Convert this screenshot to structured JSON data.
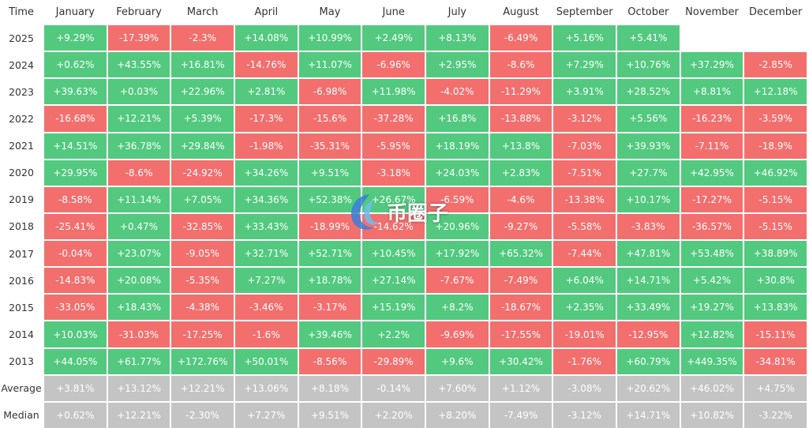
{
  "table": {
    "header": [
      "Time",
      "January",
      "February",
      "March",
      "April",
      "May",
      "June",
      "July",
      "August",
      "September",
      "October",
      "November",
      "December"
    ],
    "rows": [
      {
        "label": "2025",
        "cells": [
          "+9.29%",
          "-17.39%",
          "-2.3%",
          "+14.08%",
          "+10.99%",
          "+2.49%",
          "+8.13%",
          "-6.49%",
          "+5.16%",
          "+5.41%",
          null,
          null
        ]
      },
      {
        "label": "2024",
        "cells": [
          "+0.62%",
          "+43.55%",
          "+16.81%",
          "-14.76%",
          "+11.07%",
          "-6.96%",
          "+2.95%",
          "-8.6%",
          "+7.29%",
          "+10.76%",
          "+37.29%",
          "-2.85%"
        ]
      },
      {
        "label": "2023",
        "cells": [
          "+39.63%",
          "+0.03%",
          "+22.96%",
          "+2.81%",
          "-6.98%",
          "+11.98%",
          "-4.02%",
          "-11.29%",
          "+3.91%",
          "+28.52%",
          "+8.81%",
          "+12.18%"
        ]
      },
      {
        "label": "2022",
        "cells": [
          "-16.68%",
          "+12.21%",
          "+5.39%",
          "-17.3%",
          "-15.6%",
          "-37.28%",
          "+16.8%",
          "-13.88%",
          "-3.12%",
          "+5.56%",
          "-16.23%",
          "-3.59%"
        ]
      },
      {
        "label": "2021",
        "cells": [
          "+14.51%",
          "+36.78%",
          "+29.84%",
          "-1.98%",
          "-35.31%",
          "-5.95%",
          "+18.19%",
          "+13.8%",
          "-7.03%",
          "+39.93%",
          "-7.11%",
          "-18.9%"
        ]
      },
      {
        "label": "2020",
        "cells": [
          "+29.95%",
          "-8.6%",
          "-24.92%",
          "+34.26%",
          "+9.51%",
          "-3.18%",
          "+24.03%",
          "+2.83%",
          "-7.51%",
          "+27.7%",
          "+42.95%",
          "+46.92%"
        ]
      },
      {
        "label": "2019",
        "cells": [
          "-8.58%",
          "+11.14%",
          "+7.05%",
          "+34.36%",
          "+52.38%",
          "+26.67%",
          "-6.59%",
          "-4.6%",
          "-13.38%",
          "+10.17%",
          "-17.27%",
          "-5.15%"
        ]
      },
      {
        "label": "2018",
        "cells": [
          "-25.41%",
          "+0.47%",
          "-32.85%",
          "+33.43%",
          "-18.99%",
          "-14.62%",
          "+20.96%",
          "-9.27%",
          "-5.58%",
          "-3.83%",
          "-36.57%",
          "-5.15%"
        ]
      },
      {
        "label": "2017",
        "cells": [
          "-0.04%",
          "+23.07%",
          "-9.05%",
          "+32.71%",
          "+52.71%",
          "+10.45%",
          "+17.92%",
          "+65.32%",
          "-7.44%",
          "+47.81%",
          "+53.48%",
          "+38.89%"
        ]
      },
      {
        "label": "2016",
        "cells": [
          "-14.83%",
          "+20.08%",
          "-5.35%",
          "+7.27%",
          "+18.78%",
          "+27.14%",
          "-7.67%",
          "-7.49%",
          "+6.04%",
          "+14.71%",
          "+5.42%",
          "+30.8%"
        ]
      },
      {
        "label": "2015",
        "cells": [
          "-33.05%",
          "+18.43%",
          "-4.38%",
          "-3.46%",
          "-3.17%",
          "+15.19%",
          "+8.2%",
          "-18.67%",
          "+2.35%",
          "+33.49%",
          "+19.27%",
          "+13.83%"
        ]
      },
      {
        "label": "2014",
        "cells": [
          "+10.03%",
          "-31.03%",
          "-17.25%",
          "-1.6%",
          "+39.46%",
          "+2.2%",
          "-9.69%",
          "-17.55%",
          "-19.01%",
          "-12.95%",
          "+12.82%",
          "-15.11%"
        ]
      },
      {
        "label": "2013",
        "cells": [
          "+44.05%",
          "+61.77%",
          "+172.76%",
          "+50.01%",
          "-8.56%",
          "-29.89%",
          "+9.6%",
          "+30.42%",
          "-1.76%",
          "+60.79%",
          "+449.35%",
          "-34.81%"
        ]
      }
    ],
    "summary_rows": [
      {
        "label": "Average",
        "cells": [
          "+3.81%",
          "+13.12%",
          "+12.21%",
          "+13.06%",
          "+8.18%",
          "-0.14%",
          "+7.60%",
          "+1.12%",
          "-3.08%",
          "+20.62%",
          "+46.02%",
          "+4.75%"
        ]
      },
      {
        "label": "Median",
        "cells": [
          "+0.62%",
          "+12.21%",
          "-2.30%",
          "+7.27%",
          "+9.51%",
          "+2.20%",
          "+8.20%",
          "-7.49%",
          "-3.12%",
          "+14.71%",
          "+10.82%",
          "-3.22%"
        ]
      }
    ],
    "colors": {
      "positive": "#52c97f",
      "negative": "#f26f6e",
      "summary": "#c4c4c4"
    }
  },
  "watermark": "币圈子"
}
